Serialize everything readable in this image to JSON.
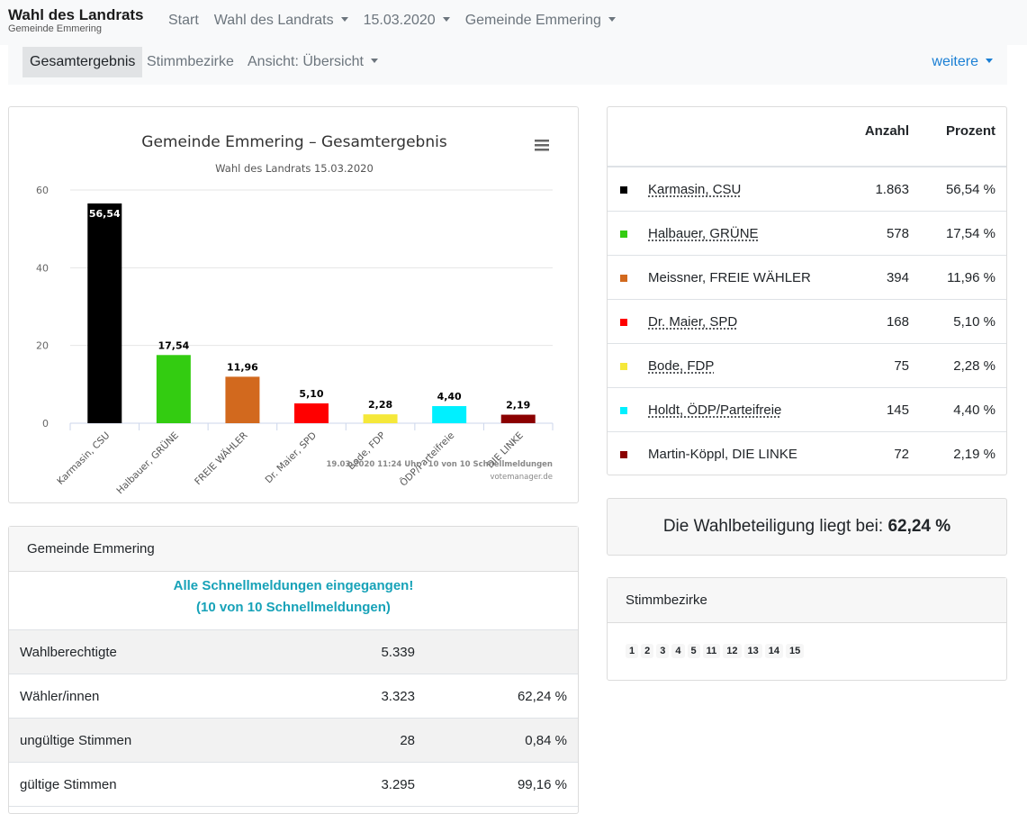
{
  "brand": {
    "title": "Wahl des Landrats",
    "subtitle": "Gemeinde Emmering"
  },
  "nav": {
    "start": "Start",
    "election": "Wahl des Landrats",
    "date": "15.03.2020",
    "municipality": "Gemeinde Emmering"
  },
  "subnav": {
    "total": "Gesamtergebnis",
    "districts": "Stimmbezirke",
    "view": "Ansicht: Übersicht",
    "more": "weitere"
  },
  "chart_data": {
    "type": "bar",
    "title": "Gemeinde Emmering – Gesamtergebnis",
    "subtitle": "Wahl des Landrats 15.03.2020",
    "categories": [
      "Karmasin, CSU",
      "Halbauer, GRÜNE",
      "FREIE WÄHLER",
      "Dr. Maier, SPD",
      "Bode, FDP",
      "ÖDP/Parteifreie",
      "DIE LINKE"
    ],
    "values": [
      56.54,
      17.54,
      11.96,
      5.1,
      2.28,
      4.4,
      2.19
    ],
    "value_labels": [
      "56,54",
      "17,54",
      "11,96",
      "5,10",
      "2,28",
      "4,40",
      "2,19"
    ],
    "colors": [
      "#000000",
      "#33cc11",
      "#d2691e",
      "#ff0000",
      "#f5e83a",
      "#00f0ff",
      "#8b0000"
    ],
    "ylim": [
      0,
      60
    ],
    "yticks": [
      0,
      20,
      40,
      60
    ],
    "credit": "19.03.2020 11:24 Uhr · 10 von 10 Schnellmeldungen",
    "credit2": "votemanager.de",
    "menu_icon": "hamburger-menu-icon",
    "grid": true
  },
  "results": {
    "header_count": "Anzahl",
    "header_pct": "Prozent",
    "rows": [
      {
        "name": "Karmasin, CSU",
        "count": "1.863",
        "pct": "56,54 %",
        "color": "#000000",
        "dotted": true
      },
      {
        "name": "Halbauer, GRÜNE",
        "count": "578",
        "pct": "17,54 %",
        "color": "#33cc11",
        "dotted": true
      },
      {
        "name": "Meissner, FREIE WÄHLER",
        "count": "394",
        "pct": "11,96 %",
        "color": "#d2691e",
        "dotted": false
      },
      {
        "name": "Dr. Maier, SPD",
        "count": "168",
        "pct": "5,10 %",
        "color": "#ff0000",
        "dotted": true
      },
      {
        "name": "Bode, FDP",
        "count": "75",
        "pct": "2,28 %",
        "color": "#f5e83a",
        "dotted": true
      },
      {
        "name": "Holdt, ÖDP/Parteifreie",
        "count": "145",
        "pct": "4,40 %",
        "color": "#00f0ff",
        "dotted": true
      },
      {
        "name": "Martin-Köppl, DIE LINKE",
        "count": "72",
        "pct": "2,19 %",
        "color": "#8b0000",
        "dotted": false
      }
    ]
  },
  "turnout": {
    "text": "Die Wahlbeteiligung liegt bei: ",
    "value": "62,24 %"
  },
  "districts": {
    "header": "Stimmbezirke",
    "items": [
      "1",
      "2",
      "3",
      "4",
      "5",
      "11",
      "12",
      "13",
      "14",
      "15"
    ]
  },
  "stats": {
    "header": "Gemeinde Emmering",
    "notice_line1": "Alle Schnellmeldungen eingegangen!",
    "notice_line2": "(10 von 10 Schnellmeldungen)",
    "rows": [
      {
        "label": "Wahlberechtigte",
        "value": "5.339",
        "pct": ""
      },
      {
        "label": "Wähler/innen",
        "value": "3.323",
        "pct": "62,24 %"
      },
      {
        "label": "ungültige Stimmen",
        "value": "28",
        "pct": "0,84 %"
      },
      {
        "label": "gültige Stimmen",
        "value": "3.295",
        "pct": "99,16 %"
      }
    ]
  }
}
